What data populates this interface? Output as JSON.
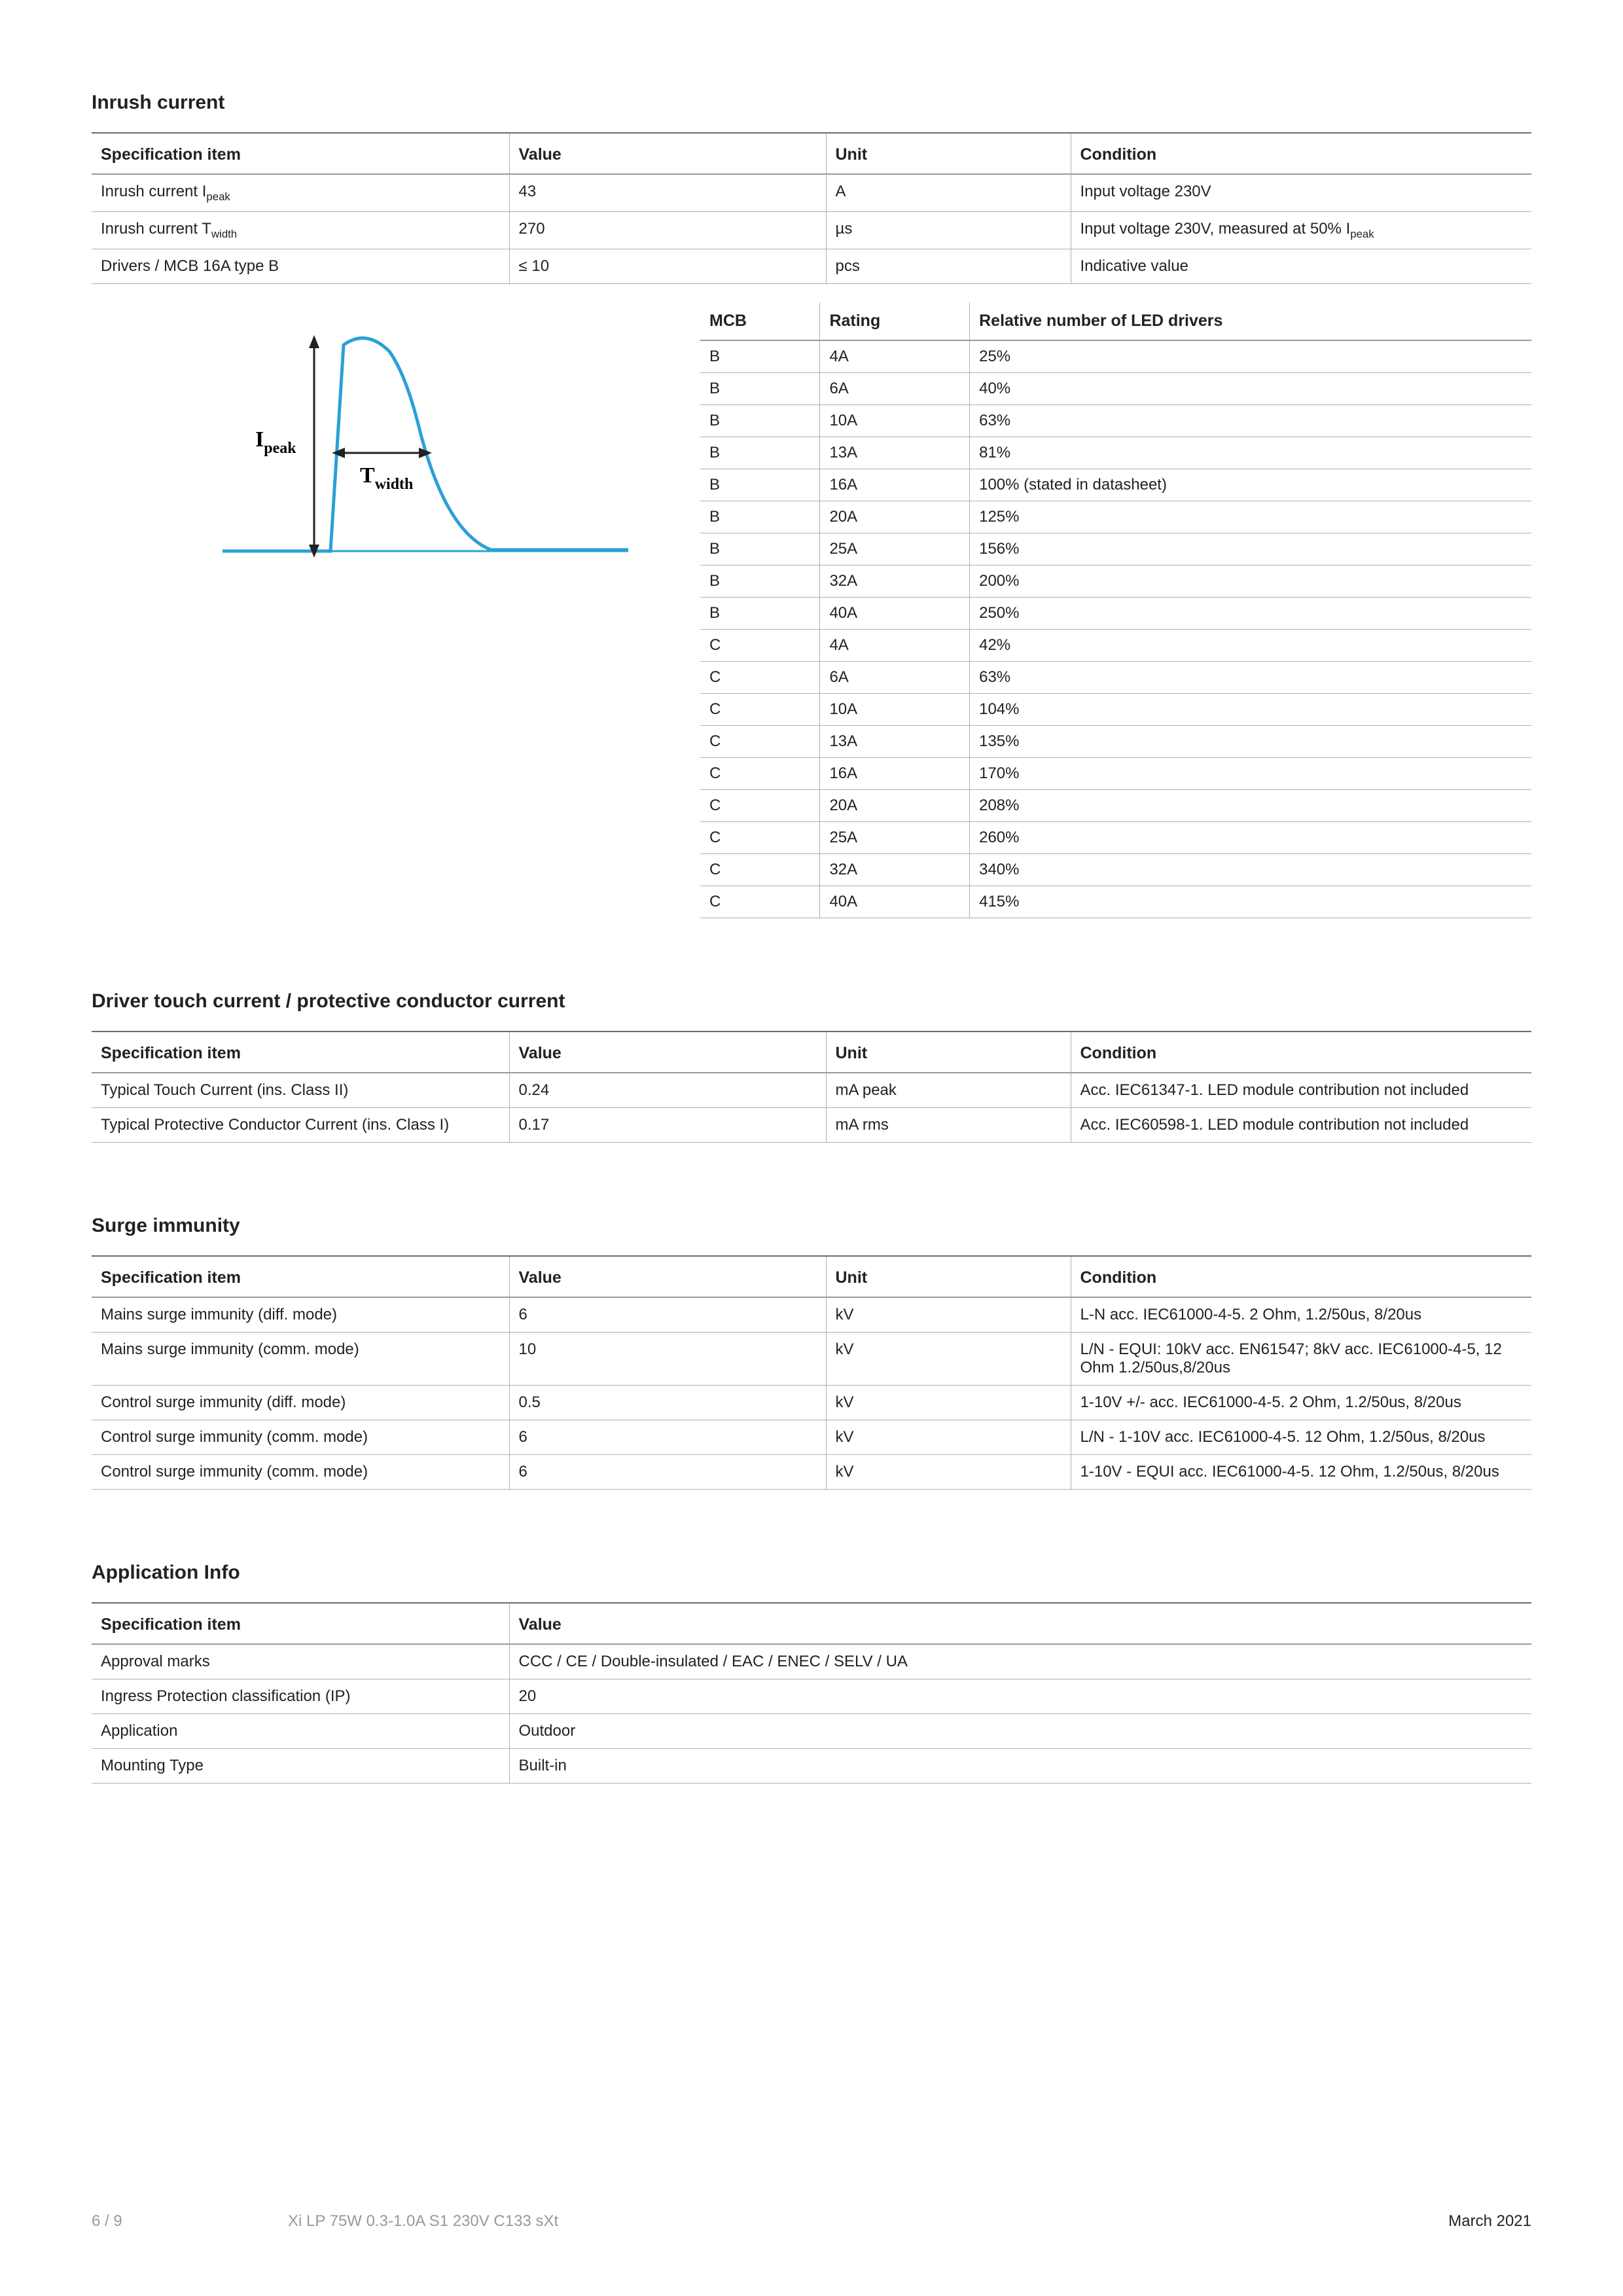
{
  "sections": {
    "inrush": {
      "title": "Inrush current",
      "headers": [
        "Specification item",
        "Value",
        "Unit",
        "Condition"
      ],
      "rows": [
        {
          "spec_pre": "Inrush current I",
          "spec_sub": "peak",
          "value": "43",
          "unit": "A",
          "cond": "Input voltage 230V"
        },
        {
          "spec_pre": "Inrush current T",
          "spec_sub": "width",
          "value": "270",
          "unit": "µs",
          "cond_pre": "Input voltage 230V, measured at 50% I",
          "cond_sub": "peak"
        },
        {
          "spec_pre": "Drivers / MCB 16A type B",
          "spec_sub": "",
          "value": "≤ 10",
          "unit": "pcs",
          "cond": "Indicative value"
        }
      ]
    },
    "mcb": {
      "headers": [
        "MCB",
        "Rating",
        "Relative number of LED drivers"
      ],
      "rows": [
        [
          "B",
          "4A",
          "25%"
        ],
        [
          "B",
          "6A",
          "40%"
        ],
        [
          "B",
          "10A",
          "63%"
        ],
        [
          "B",
          "13A",
          "81%"
        ],
        [
          "B",
          "16A",
          "100% (stated in datasheet)"
        ],
        [
          "B",
          "20A",
          "125%"
        ],
        [
          "B",
          "25A",
          "156%"
        ],
        [
          "B",
          "32A",
          "200%"
        ],
        [
          "B",
          "40A",
          "250%"
        ],
        [
          "C",
          "4A",
          "42%"
        ],
        [
          "C",
          "6A",
          "63%"
        ],
        [
          "C",
          "10A",
          "104%"
        ],
        [
          "C",
          "13A",
          "135%"
        ],
        [
          "C",
          "16A",
          "170%"
        ],
        [
          "C",
          "20A",
          "208%"
        ],
        [
          "C",
          "25A",
          "260%"
        ],
        [
          "C",
          "32A",
          "340%"
        ],
        [
          "C",
          "40A",
          "415%"
        ]
      ]
    },
    "touch": {
      "title": "Driver touch current / protective conductor current",
      "headers": [
        "Specification item",
        "Value",
        "Unit",
        "Condition"
      ],
      "rows": [
        [
          "Typical Touch Current (ins. Class II)",
          "0.24",
          "mA peak",
          "Acc. IEC61347-1. LED module contribution not included"
        ],
        [
          "Typical Protective Conductor Current (ins. Class I)",
          "0.17",
          "mA rms",
          "Acc. IEC60598-1. LED module contribution not included"
        ]
      ]
    },
    "surge": {
      "title": "Surge immunity",
      "headers": [
        "Specification item",
        "Value",
        "Unit",
        "Condition"
      ],
      "rows": [
        [
          "Mains surge immunity (diff. mode)",
          "6",
          "kV",
          "L-N acc. IEC61000-4-5. 2 Ohm, 1.2/50us, 8/20us"
        ],
        [
          "Mains surge immunity (comm. mode)",
          "10",
          "kV",
          "L/N - EQUI: 10kV acc. EN61547; 8kV acc. IEC61000-4-5, 12 Ohm 1.2/50us,8/20us"
        ],
        [
          "Control surge immunity (diff. mode)",
          "0.5",
          "kV",
          "1-10V +/- acc. IEC61000-4-5. 2 Ohm, 1.2/50us, 8/20us"
        ],
        [
          "Control surge immunity (comm. mode)",
          "6",
          "kV",
          "L/N - 1-10V acc. IEC61000-4-5. 12 Ohm, 1.2/50us, 8/20us"
        ],
        [
          "Control surge immunity (comm. mode)",
          "6",
          "kV",
          "1-10V - EQUI acc. IEC61000-4-5. 12 Ohm, 1.2/50us, 8/20us"
        ]
      ]
    },
    "app": {
      "title": "Application Info",
      "headers": [
        "Specification item",
        "Value"
      ],
      "rows": [
        [
          "Approval marks",
          "CCC / CE / Double-insulated / EAC / ENEC / SELV / UA"
        ],
        [
          "Ingress Protection classification (IP)",
          "20"
        ],
        [
          "Application",
          "Outdoor"
        ],
        [
          "Mounting Type",
          "Built-in"
        ]
      ]
    }
  },
  "diagram": {
    "ipeak_label_pre": "I",
    "ipeak_label_sub": "peak",
    "twidth_label_pre": "T",
    "twidth_label_sub": "width",
    "curve_color": "#2aa0d8",
    "arrow_color": "#222222"
  },
  "footer": {
    "page": "6 / 9",
    "title": "Xi LP 75W 0.3-1.0A S1 230V C133 sXt",
    "date": "March 2021"
  }
}
